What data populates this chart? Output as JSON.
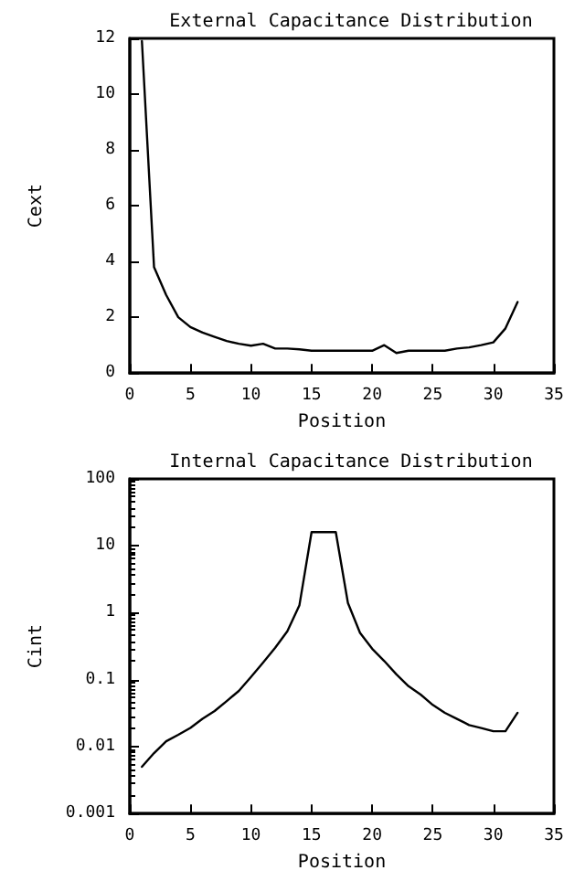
{
  "chart_data": [
    {
      "type": "line",
      "title": "External Capacitance Distribution",
      "xlabel": "Position",
      "ylabel": "Cext",
      "x": [
        1,
        2,
        3,
        4,
        5,
        6,
        7,
        8,
        9,
        10,
        11,
        12,
        13,
        14,
        15,
        16,
        17,
        18,
        19,
        20,
        21,
        22,
        23,
        24,
        25,
        26,
        27,
        28,
        29,
        30,
        31,
        32
      ],
      "series": [
        {
          "color": "#000000",
          "values": [
            11.9,
            3.8,
            2.8,
            2.0,
            1.65,
            1.45,
            1.3,
            1.15,
            1.05,
            0.98,
            1.05,
            0.88,
            0.88,
            0.85,
            0.8,
            0.8,
            0.8,
            0.8,
            0.8,
            0.8,
            1.0,
            0.72,
            0.8,
            0.8,
            0.8,
            0.8,
            0.88,
            0.92,
            1.0,
            1.1,
            1.6,
            2.55
          ]
        }
      ],
      "xlim": [
        0,
        35
      ],
      "xticks": [
        0,
        5,
        10,
        15,
        20,
        25,
        30,
        35
      ],
      "ylim": [
        0,
        12
      ],
      "yticks": [
        0,
        2,
        4,
        6,
        8,
        10,
        12
      ],
      "grid": false,
      "marker": "none",
      "line_style": "solid"
    },
    {
      "type": "line",
      "title": "Internal Capacitance Distribution",
      "xlabel": "Position",
      "ylabel": "Cint",
      "log": "y",
      "x": [
        1,
        2,
        3,
        4,
        5,
        6,
        7,
        8,
        9,
        10,
        11,
        12,
        13,
        14,
        15,
        16,
        17,
        18,
        19,
        20,
        21,
        22,
        23,
        24,
        25,
        26,
        27,
        28,
        29,
        30,
        31,
        32
      ],
      "series": [
        {
          "color": "#000000",
          "values": [
            0.005,
            0.008,
            0.012,
            0.015,
            0.019,
            0.026,
            0.034,
            0.048,
            0.068,
            0.11,
            0.18,
            0.3,
            0.53,
            1.3,
            16,
            16,
            16,
            1.4,
            0.5,
            0.29,
            0.19,
            0.12,
            0.08,
            0.06,
            0.042,
            0.032,
            0.026,
            0.021,
            0.019,
            0.017,
            0.017,
            0.032
          ]
        }
      ],
      "xlim": [
        0,
        35
      ],
      "xticks": [
        0,
        5,
        10,
        15,
        20,
        25,
        30,
        35
      ],
      "ylim": [
        0.001,
        100
      ],
      "yticks": [
        0.001,
        0.01,
        0.1,
        1,
        10,
        100
      ],
      "grid": false,
      "marker": "none",
      "line_style": "solid"
    }
  ]
}
